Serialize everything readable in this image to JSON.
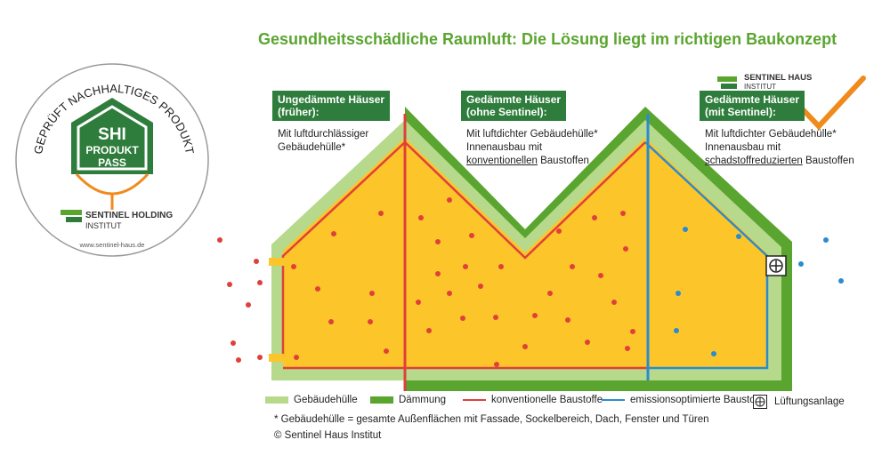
{
  "title": "Gesundheitsschädliche Raumluft: Die Lösung liegt im richtigen Baukonzept",
  "badge": {
    "arc_text": "GEPRÜFT NACHHALTIGES PRODUKT",
    "shi": "SHI",
    "produkt": "PRODUKT",
    "pass": "PASS",
    "holding": "SENTINEL HOLDING",
    "institut": "INSTITUT",
    "url": "www.sentinel-haus.de"
  },
  "logo_small": {
    "line1": "SENTINEL HAUS",
    "line2": "INSTITUT"
  },
  "sections": [
    {
      "heading": [
        "Ungedämmte Häuser",
        "(früher):"
      ],
      "body": [
        "Mit luftdurchlässiger",
        "Gebäudehülle*"
      ]
    },
    {
      "heading": [
        "Gedämmte Häuser",
        "(ohne Sentinel):"
      ],
      "body": [
        "Mit luftdichter Gebäudehülle*",
        "Innenausbau mit",
        "konventionellen",
        " Baustoffen"
      ]
    },
    {
      "heading": [
        "Gedämmte Häuser",
        "(mit Sentinel):"
      ],
      "body": [
        "Mit luftdichter Gebäudehülle*",
        "Innenausbau mit",
        "schadstoffreduzierten",
        " Baustoffen"
      ]
    }
  ],
  "legend": [
    {
      "label": "Gebäudehülle",
      "color": "#b7d98b"
    },
    {
      "label": "Dämmung",
      "color": "#5aa52f"
    },
    {
      "label": "konventionelle Baustoffe",
      "color": "#e0403a"
    },
    {
      "label": "emissionsoptimierte Baustoffe",
      "color": "#2a8ccf"
    },
    {
      "label": "Lüftungsanlage",
      "color": "#222222"
    }
  ],
  "footnote": "* Gebäudehülle = gesamte Außenflächen mit Fassade, Sockelbereich, Dach, Fenster und Türen",
  "copyright": "© Sentinel Haus Institut",
  "colors": {
    "interior": "#fcc62b",
    "envelope": "#b7d98b",
    "insulation": "#5aa52f",
    "conventional": "#e0403a",
    "optimized": "#2a8ccf",
    "label_bg": "#2f7d3c"
  }
}
